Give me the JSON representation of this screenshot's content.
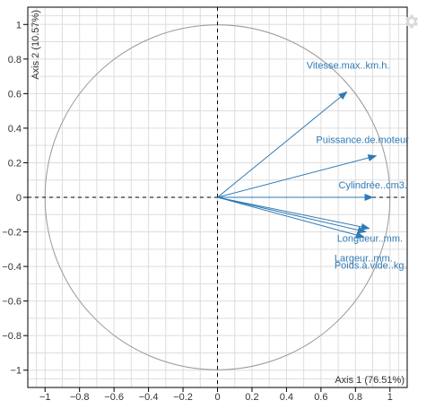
{
  "toolbar": {
    "settings_icon": "gear-icon"
  },
  "chart_data": {
    "type": "pca-variable-factor-map",
    "xlabel": "Axis 1 (76.51%)",
    "ylabel": "Axis 2 (10.57%)",
    "xlim": [
      -1.1,
      1.1
    ],
    "ylim": [
      -1.1,
      1.1
    ],
    "grid": true,
    "x_ticks": [
      -1,
      -0.8,
      -0.6,
      -0.4,
      -0.2,
      0,
      0.2,
      0.4,
      0.6,
      0.8,
      1
    ],
    "y_ticks": [
      -1,
      -0.8,
      -0.6,
      -0.4,
      -0.2,
      0,
      0.2,
      0.4,
      0.6,
      0.8,
      1
    ],
    "x_tick_labels": [
      "−1",
      "−0.8",
      "−0.6",
      "−0.4",
      "−0.2",
      "0",
      "0.2",
      "0.4",
      "0.6",
      "0.8",
      "1"
    ],
    "y_tick_labels": [
      "−1",
      "−0.8",
      "−0.6",
      "−0.4",
      "−0.2",
      "0",
      "0.2",
      "0.4",
      "0.6",
      "0.8",
      "1"
    ],
    "circle_radius": 1,
    "arrow_color": "#2f7ab5",
    "circle_color": "#999999",
    "grid_color": "#dddddd",
    "variables": [
      {
        "name": "Vitesse.max..km.h.",
        "x": 0.75,
        "y": 0.61
      },
      {
        "name": "Puissance.de.moteur",
        "x": 0.92,
        "y": 0.24
      },
      {
        "name": "Cylindrée..cm3.",
        "x": 0.9,
        "y": 0.0
      },
      {
        "name": "Longueur..mm.",
        "x": 0.88,
        "y": -0.18
      },
      {
        "name": "Largeur..mm.",
        "x": 0.85,
        "y": -0.23
      },
      {
        "name": "Poids.à.vide..kg.",
        "x": 0.86,
        "y": -0.2
      }
    ]
  }
}
